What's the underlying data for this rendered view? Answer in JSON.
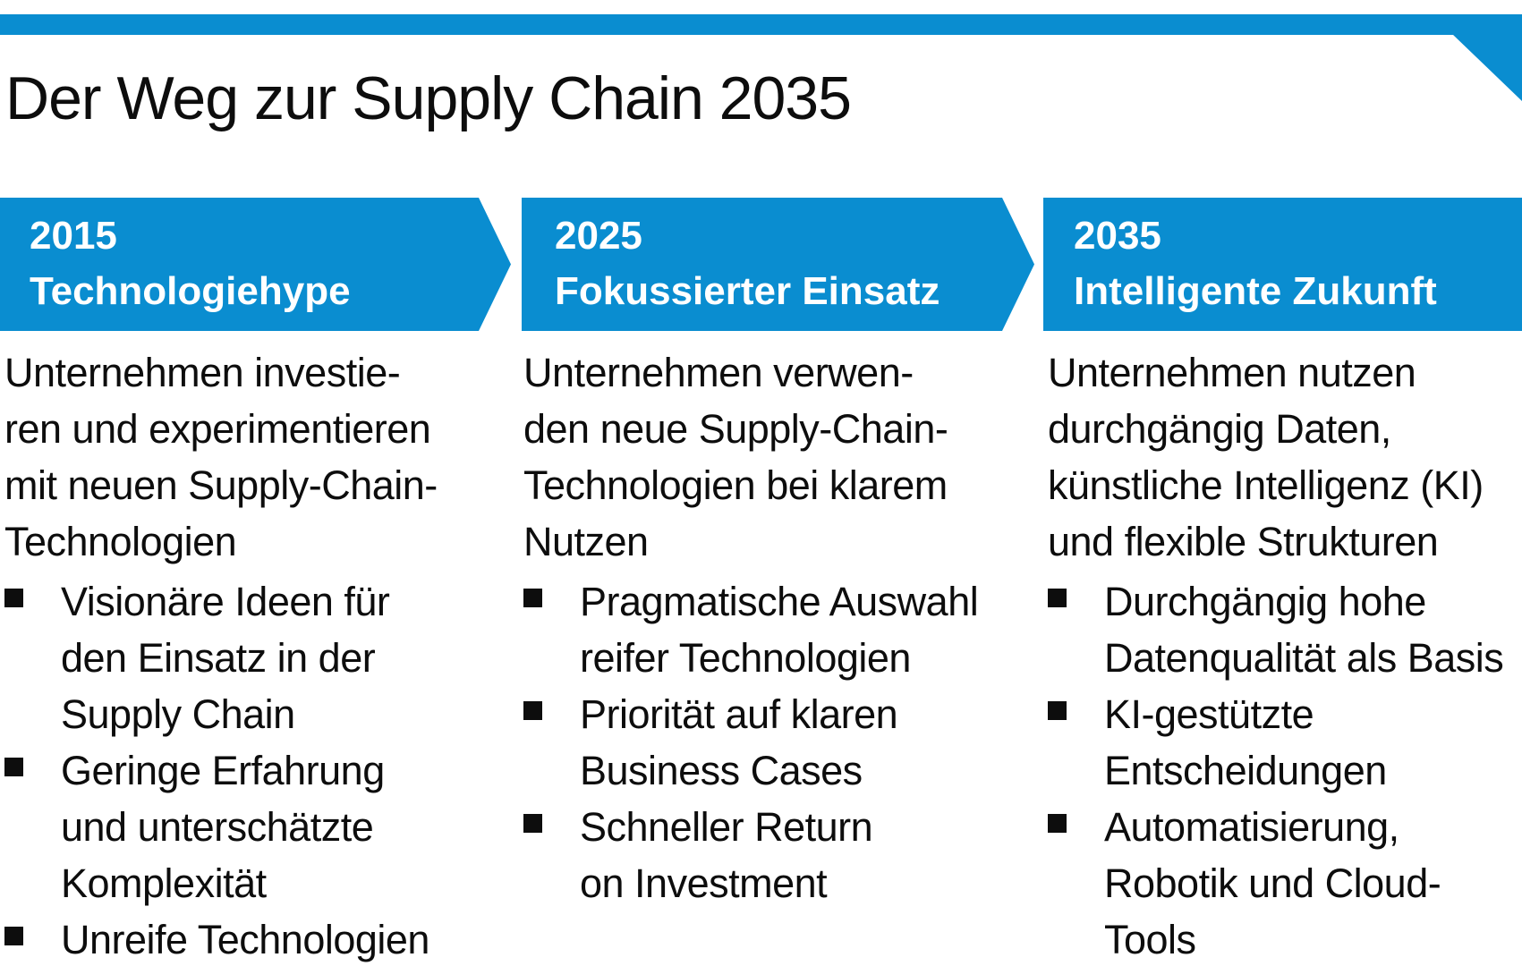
{
  "colors": {
    "accent": "#0a8dd0",
    "text": "#0d0d0d",
    "banner_text": "#ffffff"
  },
  "title": "Der Weg zur Supply Chain 2035",
  "timeline": {
    "stages": [
      {
        "year": "2015",
        "label": "Technologiehype",
        "intro": "Unternehmen investie-\nren und experimentieren\nmit neuen Supply-Chain-\nTechnologien",
        "bullets": [
          "Visionäre Ideen für\nden Einsatz in der\nSupply Chain",
          "Geringe Erfahrung\nund unterschätzte\nKomplexität",
          "Unreife Technologien"
        ]
      },
      {
        "year": "2025",
        "label": "Fokussierter Einsatz",
        "intro": "Unternehmen verwen-\nden neue Supply-Chain-\nTechnologien bei klarem\nNutzen",
        "bullets": [
          "Pragmatische Auswahl\nreifer Technologien",
          "Priorität auf klaren\nBusiness Cases",
          "Schneller Return\non Investment"
        ]
      },
      {
        "year": "2035",
        "label": "Intelligente Zukunft",
        "intro": "Unternehmen nutzen\ndurchgängig Daten,\nkünstliche Intelligenz (KI)\nund flexible Strukturen",
        "bullets": [
          "Durchgängig hohe\nDatenqualität als Basis",
          "KI-gestützte\nEntscheidungen",
          "Automatisierung,\nRobotik und Cloud-\nTools"
        ]
      }
    ]
  }
}
